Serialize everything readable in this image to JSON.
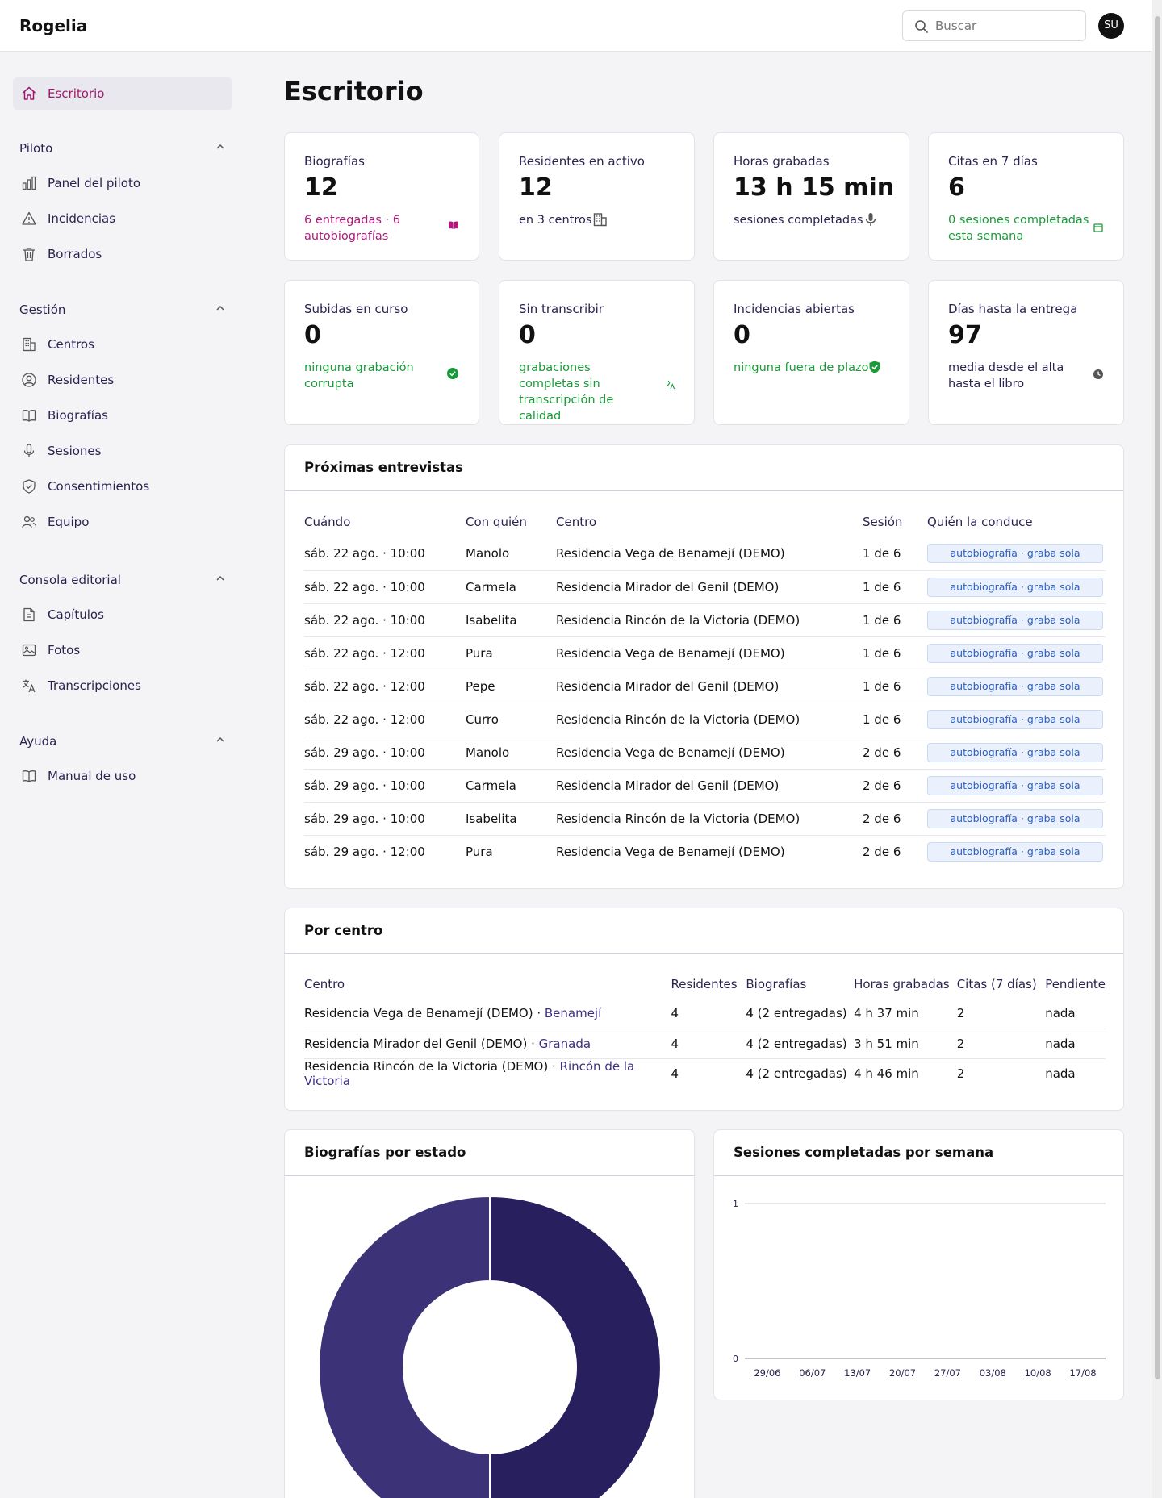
{
  "app": {
    "name": "Rogelia"
  },
  "search": {
    "placeholder": "Buscar"
  },
  "user": {
    "initials": "SU"
  },
  "sidebar": {
    "home": {
      "label": "Escritorio",
      "icon": "home-icon"
    },
    "sections": [
      {
        "title": "Piloto",
        "items": [
          {
            "label": "Panel del piloto",
            "icon": "bar-chart-icon"
          },
          {
            "label": "Incidencias",
            "icon": "warning-icon"
          },
          {
            "label": "Borrados",
            "icon": "trash-icon"
          }
        ]
      },
      {
        "title": "Gestión",
        "items": [
          {
            "label": "Centros",
            "icon": "building-icon"
          },
          {
            "label": "Residentes",
            "icon": "user-circle-icon"
          },
          {
            "label": "Biografías",
            "icon": "book-icon"
          },
          {
            "label": "Sesiones",
            "icon": "microphone-icon"
          },
          {
            "label": "Consentimientos",
            "icon": "shield-check-icon"
          },
          {
            "label": "Equipo",
            "icon": "users-icon"
          }
        ]
      },
      {
        "title": "Consola editorial",
        "items": [
          {
            "label": "Capítulos",
            "icon": "document-icon"
          },
          {
            "label": "Fotos",
            "icon": "image-icon"
          },
          {
            "label": "Transcripciones",
            "icon": "translate-icon"
          }
        ]
      },
      {
        "title": "Ayuda",
        "items": [
          {
            "label": "Manual de uso",
            "icon": "book-icon"
          }
        ]
      }
    ]
  },
  "page": {
    "title": "Escritorio"
  },
  "stats": [
    {
      "label": "Biografías",
      "value": "12",
      "sub": "6 entregadas · 6 autobiografías",
      "tone": "pink",
      "icon": "book-open-icon"
    },
    {
      "label": "Residentes en activo",
      "value": "12",
      "sub": "en 3 centros",
      "tone": "dark",
      "icon": "building-icon"
    },
    {
      "label": "Horas grabadas",
      "value": "13 h 15 min",
      "sub": "sesiones completadas",
      "tone": "dark",
      "icon": "microphone-icon"
    },
    {
      "label": "Citas en 7 días",
      "value": "6",
      "sub": "0 sesiones completadas esta semana",
      "tone": "green",
      "icon": "calendar-icon"
    },
    {
      "label": "Subidas en curso",
      "value": "0",
      "sub": "ninguna grabación corrupta",
      "tone": "green",
      "icon": "check-circle-icon"
    },
    {
      "label": "Sin transcribir",
      "value": "0",
      "sub": "grabaciones completas sin transcripción de calidad",
      "tone": "green",
      "icon": "translate-icon"
    },
    {
      "label": "Incidencias abiertas",
      "value": "0",
      "sub": "ninguna fuera de plazo",
      "tone": "green",
      "icon": "shield-check-icon"
    },
    {
      "label": "Días hasta la entrega",
      "value": "97",
      "sub": "media desde el alta hasta el libro",
      "tone": "dark",
      "icon": "clock-icon"
    }
  ],
  "interviews": {
    "title": "Próximas entrevistas",
    "columns": [
      "Cuándo",
      "Con quién",
      "Centro",
      "Sesión",
      "Quién la conduce"
    ],
    "rows": [
      [
        "sáb. 22 ago. · 10:00",
        "Manolo",
        "Residencia Vega de Benamejí (DEMO)",
        "1 de 6",
        "autobiografía · graba sola"
      ],
      [
        "sáb. 22 ago. · 10:00",
        "Carmela",
        "Residencia Mirador del Genil (DEMO)",
        "1 de 6",
        "autobiografía · graba sola"
      ],
      [
        "sáb. 22 ago. · 10:00",
        "Isabelita",
        "Residencia Rincón de la Victoria (DEMO)",
        "1 de 6",
        "autobiografía · graba sola"
      ],
      [
        "sáb. 22 ago. · 12:00",
        "Pura",
        "Residencia Vega de Benamejí (DEMO)",
        "1 de 6",
        "autobiografía · graba sola"
      ],
      [
        "sáb. 22 ago. · 12:00",
        "Pepe",
        "Residencia Mirador del Genil (DEMO)",
        "1 de 6",
        "autobiografía · graba sola"
      ],
      [
        "sáb. 22 ago. · 12:00",
        "Curro",
        "Residencia Rincón de la Victoria (DEMO)",
        "1 de 6",
        "autobiografía · graba sola"
      ],
      [
        "sáb. 29 ago. · 10:00",
        "Manolo",
        "Residencia Vega de Benamejí (DEMO)",
        "2 de 6",
        "autobiografía · graba sola"
      ],
      [
        "sáb. 29 ago. · 10:00",
        "Carmela",
        "Residencia Mirador del Genil (DEMO)",
        "2 de 6",
        "autobiografía · graba sola"
      ],
      [
        "sáb. 29 ago. · 10:00",
        "Isabelita",
        "Residencia Rincón de la Victoria (DEMO)",
        "2 de 6",
        "autobiografía · graba sola"
      ],
      [
        "sáb. 29 ago. · 12:00",
        "Pura",
        "Residencia Vega de Benamejí (DEMO)",
        "2 de 6",
        "autobiografía · graba sola"
      ]
    ]
  },
  "centers": {
    "title": "Por centro",
    "columns": [
      "Centro",
      "Residentes",
      "Biografías",
      "Horas grabadas",
      "Citas (7 días)",
      "Pendiente"
    ],
    "rows": [
      {
        "name": "Residencia Vega de Benamejí (DEMO)",
        "city": "Benamejí",
        "residents": "4",
        "bios": "4 (2 entregadas)",
        "hours": "4 h 37 min",
        "appts": "2",
        "pending": "nada"
      },
      {
        "name": "Residencia Mirador del Genil (DEMO)",
        "city": "Granada",
        "residents": "4",
        "bios": "4 (2 entregadas)",
        "hours": "3 h 51 min",
        "appts": "2",
        "pending": "nada"
      },
      {
        "name": "Residencia Rincón de la Victoria (DEMO)",
        "city": "Rincón de la Victoria",
        "residents": "4",
        "bios": "4 (2 entregadas)",
        "hours": "4 h 46 min",
        "appts": "2",
        "pending": "nada"
      }
    ]
  },
  "chart_data": [
    {
      "type": "pie",
      "title": "Biografías por estado",
      "values": [
        6,
        6
      ],
      "colors": [
        "#271f5e",
        "#3b3278"
      ],
      "donut": true
    },
    {
      "type": "line",
      "title": "Sesiones completadas por semana",
      "x": [
        "29/06",
        "06/07",
        "13/07",
        "20/07",
        "27/07",
        "03/08",
        "10/08",
        "17/08"
      ],
      "yticks": [
        0,
        1
      ],
      "ylim": [
        0,
        1
      ],
      "grid": true
    }
  ],
  "colors": {
    "accent": "#a01a6f",
    "nav_text": "#2a2350",
    "ok_green": "#1a9a3a",
    "tag_bg": "#eaf1fc"
  }
}
